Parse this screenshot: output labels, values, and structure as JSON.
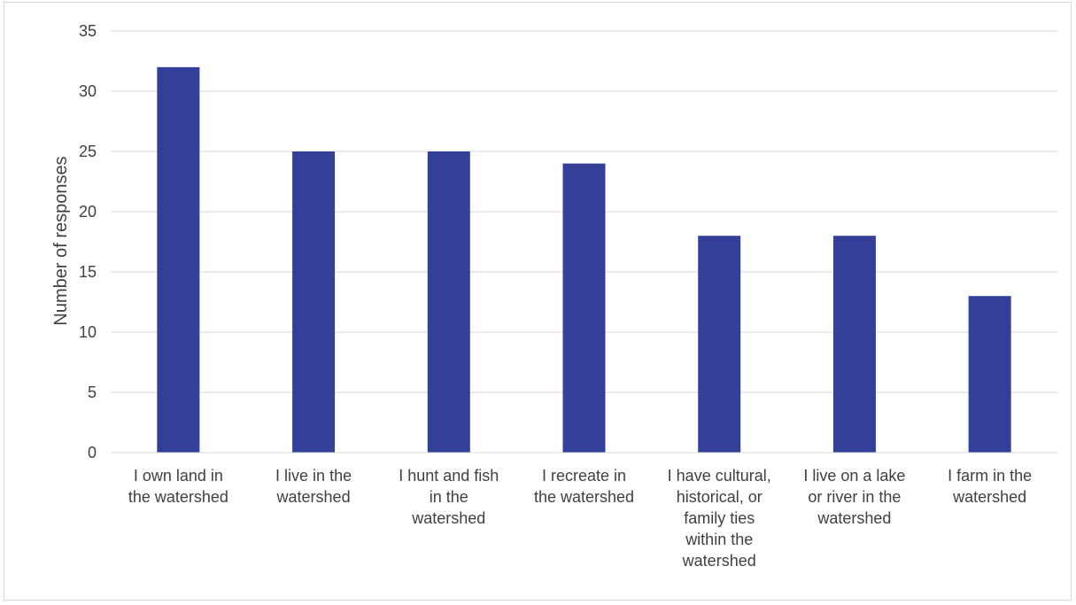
{
  "chart_data": {
    "type": "bar",
    "title": "",
    "xlabel": "",
    "ylabel": "Number of responses",
    "ylim": [
      0,
      35
    ],
    "yticks": [
      0,
      5,
      10,
      15,
      20,
      25,
      30,
      35
    ],
    "grid": true,
    "legend": "none",
    "bar_color": "#333f99",
    "categories": [
      "I own land in the watershed",
      "I live in the watershed",
      "I hunt and fish in the watershed",
      "I recreate in the watershed",
      "I have cultural, historical, or family ties within the watershed",
      "I live on a lake or river in the watershed",
      "I farm in the watershed"
    ],
    "category_lines": [
      [
        "I own land in",
        "the watershed"
      ],
      [
        "I live in the",
        "watershed"
      ],
      [
        "I hunt and fish",
        "in the",
        "watershed"
      ],
      [
        "I recreate in",
        "the watershed"
      ],
      [
        "I have cultural,",
        "historical, or",
        "family ties",
        "within the",
        "watershed"
      ],
      [
        "I live on a lake",
        "or river in the",
        "watershed"
      ],
      [
        "I farm in the",
        "watershed"
      ]
    ],
    "values": [
      32,
      25,
      25,
      24,
      18,
      18,
      13
    ]
  }
}
